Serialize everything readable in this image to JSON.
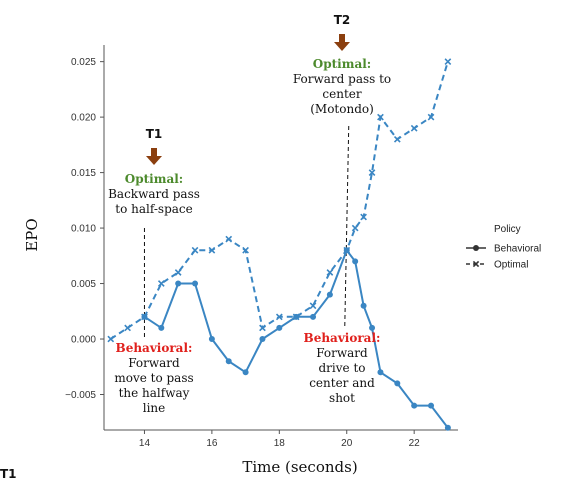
{
  "chart_data": {
    "type": "line",
    "xlabel": "Time (seconds)",
    "ylabel": "EPO",
    "xlim": [
      12.8,
      23.3
    ],
    "ylim": [
      -0.0082,
      0.0265
    ],
    "xticks": [
      14,
      16,
      18,
      20,
      22
    ],
    "yticks": [
      -0.005,
      0.0,
      0.005,
      0.01,
      0.015,
      0.02,
      0.025
    ],
    "xtick_labels": [
      "14",
      "16",
      "18",
      "20",
      "22"
    ],
    "ytick_labels": [
      "−0.005",
      "0.000",
      "0.005",
      "0.010",
      "0.015",
      "0.020",
      "0.025"
    ],
    "grid": false,
    "legend": {
      "title": "Policy",
      "position": "right"
    },
    "series": [
      {
        "name": "Behavioral",
        "style": "solid",
        "marker": "circle",
        "color": "#3a86c3",
        "x": [
          14,
          14.5,
          15,
          15.5,
          16,
          16.5,
          17,
          17.5,
          18,
          18.5,
          19,
          19.5,
          20,
          20.25,
          20.5,
          20.75,
          21,
          21.5,
          22,
          22.5,
          23
        ],
        "y": [
          0.002,
          0.001,
          0.005,
          0.005,
          0.0,
          -0.002,
          -0.003,
          0.0,
          0.001,
          0.002,
          0.002,
          0.004,
          0.008,
          0.007,
          0.003,
          0.001,
          -0.003,
          -0.004,
          -0.006,
          -0.006,
          -0.008
        ]
      },
      {
        "name": "Optimal",
        "style": "dashed",
        "marker": "x",
        "color": "#3a86c3",
        "x": [
          13,
          13.5,
          14,
          14.5,
          15,
          15.5,
          16,
          16.5,
          17,
          17.5,
          18,
          18.5,
          19,
          19.5,
          20,
          20.25,
          20.5,
          20.75,
          21,
          21.5,
          22,
          22.5,
          23
        ],
        "y": [
          0.0,
          0.001,
          0.002,
          0.005,
          0.006,
          0.008,
          0.008,
          0.009,
          0.008,
          0.001,
          0.002,
          0.002,
          0.003,
          0.006,
          0.008,
          0.01,
          0.011,
          0.015,
          0.02,
          0.018,
          0.019,
          0.02,
          0.025
        ]
      }
    ],
    "annotations": [
      {
        "x": 14,
        "marker": "T1",
        "optimal_title": "Optimal:",
        "optimal_lines": [
          "Backward pass",
          "to half-space"
        ],
        "behavioral_title": "Behavioral:",
        "behavioral_lines": [
          "Forward",
          "move to pass",
          "the halfway",
          "line"
        ]
      },
      {
        "x": 20,
        "marker": "T2",
        "optimal_title": "Optimal:",
        "optimal_lines": [
          "Forward pass to",
          "center",
          "(Motondo)"
        ],
        "behavioral_title": "Behavioral:",
        "behavioral_lines": [
          "Forward",
          "drive to",
          "center and",
          "shot"
        ]
      }
    ],
    "colors": {
      "line": "#3a86c3",
      "arrow": "#8b3f0f",
      "optimal_text": "#4c8a2c",
      "behavioral_text": "#e0201c"
    }
  },
  "page": {
    "corner_label": "T1"
  }
}
